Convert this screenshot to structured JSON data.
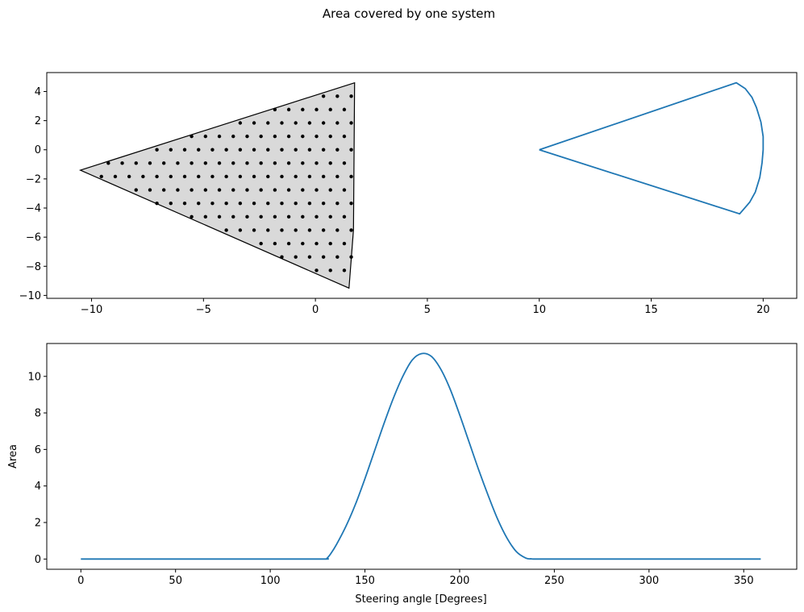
{
  "figure": {
    "title": "Area covered by one system"
  },
  "chart_data": [
    {
      "type": "scatter",
      "xlim": [
        -12,
        21.5
      ],
      "ylim": [
        -10.2,
        5.3
      ],
      "xticks": [
        -10,
        -5,
        0,
        5,
        10,
        15,
        20
      ],
      "yticks": [
        -10,
        -8,
        -6,
        -4,
        -2,
        0,
        2,
        4
      ],
      "xlabel": "",
      "ylabel": "",
      "grid": false,
      "polygon_fill": "#d9d9d9",
      "polygon_edge": "#000000",
      "polygon": [
        [
          -10.5,
          -1.4
        ],
        [
          1.75,
          4.6
        ],
        [
          1.7,
          -5.5
        ],
        [
          1.5,
          -9.5
        ]
      ],
      "sector": {
        "color": "#1f77b4",
        "points": [
          [
            10,
            0
          ],
          [
            18.8,
            4.6
          ],
          [
            19.2,
            4.2
          ],
          [
            19.5,
            3.6
          ],
          [
            19.7,
            2.9
          ],
          [
            19.9,
            1.9
          ],
          [
            20,
            0.9
          ],
          [
            20,
            0
          ],
          [
            19.95,
            -0.9
          ],
          [
            19.85,
            -1.9
          ],
          [
            19.65,
            -2.9
          ],
          [
            19.4,
            -3.6
          ],
          [
            18.95,
            -4.4
          ],
          [
            10,
            0
          ]
        ]
      },
      "points_grid": {
        "x_start": -10.8,
        "x_step": 0.62,
        "y_start": -9.2,
        "y_step": 0.92,
        "rows": 15,
        "x_max": 1.6,
        "marker_color": "#000000"
      }
    },
    {
      "type": "line",
      "xlim": [
        -18,
        378
      ],
      "ylim": [
        -0.56,
        11.8
      ],
      "xticks": [
        0,
        50,
        100,
        150,
        200,
        250,
        300,
        350
      ],
      "yticks": [
        0,
        2,
        4,
        6,
        8,
        10
      ],
      "xlabel": "Steering angle [Degrees]",
      "ylabel": "Area",
      "grid": false,
      "series": [
        {
          "color": "#1f77b4",
          "x": [
            0,
            50,
            100,
            128,
            130,
            132,
            135,
            140,
            145,
            150,
            155,
            160,
            165,
            170,
            175,
            180,
            185,
            190,
            195,
            200,
            205,
            210,
            215,
            220,
            225,
            230,
            235,
            238,
            240,
            250,
            300,
            359
          ],
          "y": [
            0,
            0,
            0,
            0,
            0.05,
            0.3,
            0.8,
            1.8,
            3.0,
            4.4,
            5.9,
            7.4,
            8.8,
            10.0,
            10.9,
            11.25,
            11.1,
            10.4,
            9.3,
            7.9,
            6.4,
            4.9,
            3.5,
            2.2,
            1.15,
            0.4,
            0.05,
            0.01,
            0,
            0,
            0,
            0
          ]
        }
      ]
    }
  ]
}
